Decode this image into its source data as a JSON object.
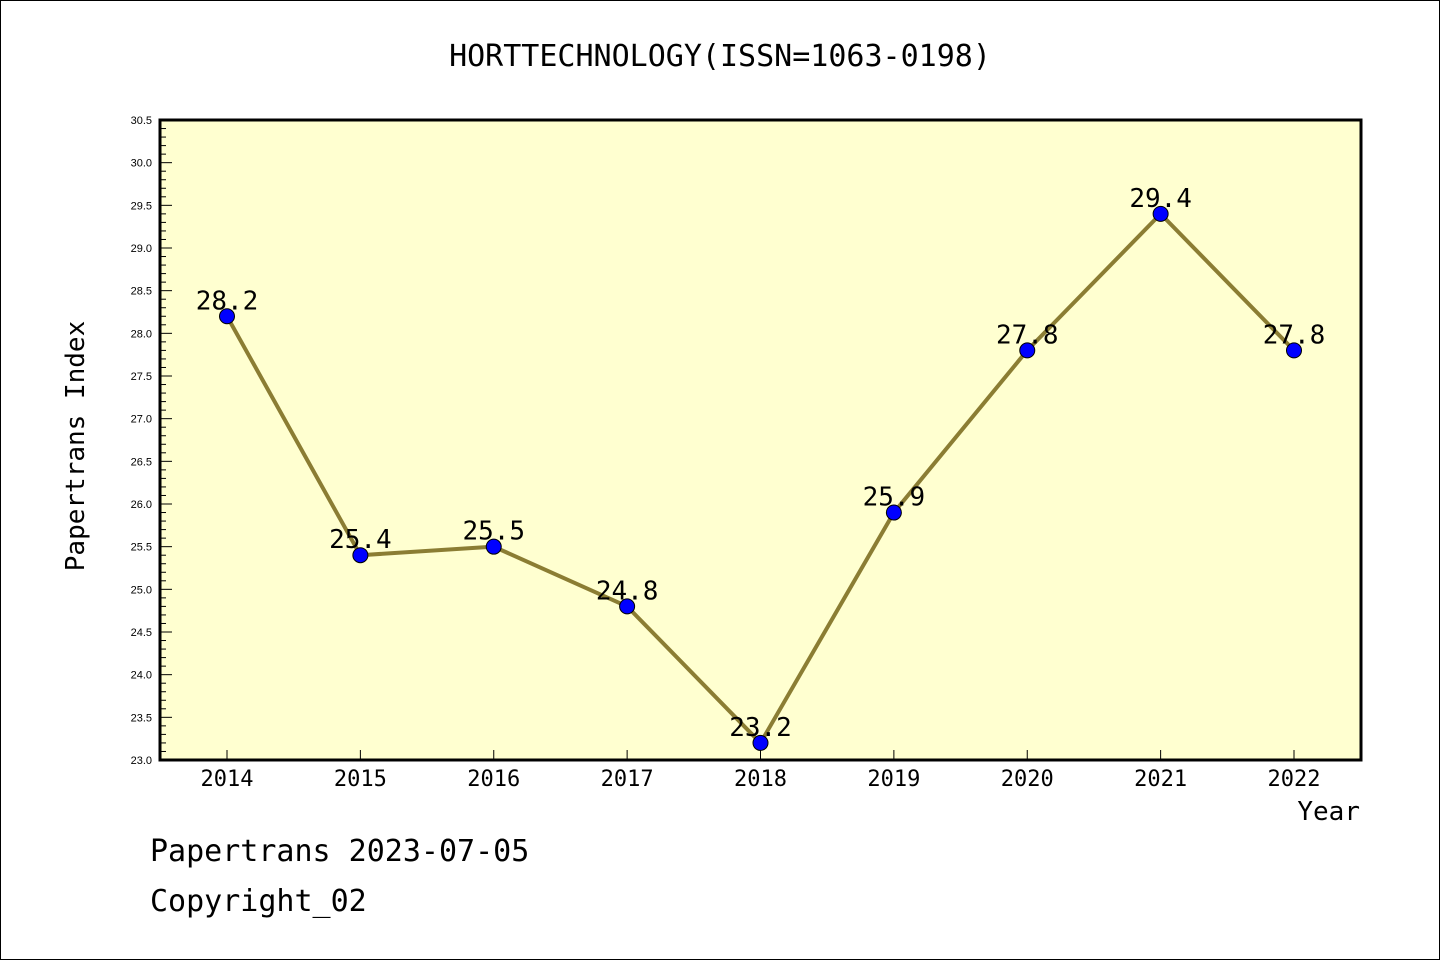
{
  "chart_data": {
    "type": "line",
    "title": "HORTTECHNOLOGY(ISSN=1063-0198)",
    "xlabel": "Year",
    "ylabel": "Papertrans Index",
    "categories": [
      "2014",
      "2015",
      "2016",
      "2017",
      "2018",
      "2019",
      "2020",
      "2021",
      "2022"
    ],
    "series": [
      {
        "values": [
          28.2,
          25.4,
          25.5,
          24.8,
          23.2,
          25.9,
          27.8,
          29.4,
          27.8
        ]
      }
    ],
    "data_labels": [
      "28.2",
      "25.4",
      "25.5",
      "24.8",
      "23.2",
      "25.9",
      "27.8",
      "29.4",
      "27.8"
    ],
    "ylim": [
      23.0,
      30.5
    ],
    "yticks": [
      "23.0",
      "23.5",
      "24.0",
      "24.5",
      "25.0",
      "25.5",
      "26.0",
      "26.5",
      "27.0",
      "27.5",
      "28.0",
      "28.5",
      "29.0",
      "29.5",
      "30.0",
      "30.5"
    ],
    "grid": false,
    "colors": {
      "plot_background": "#ffffd0",
      "line": "#8b7d33",
      "marker": "#0000ff"
    }
  },
  "footer": {
    "line1": "Papertrans 2023-07-05",
    "line2": "Copyright_02"
  }
}
